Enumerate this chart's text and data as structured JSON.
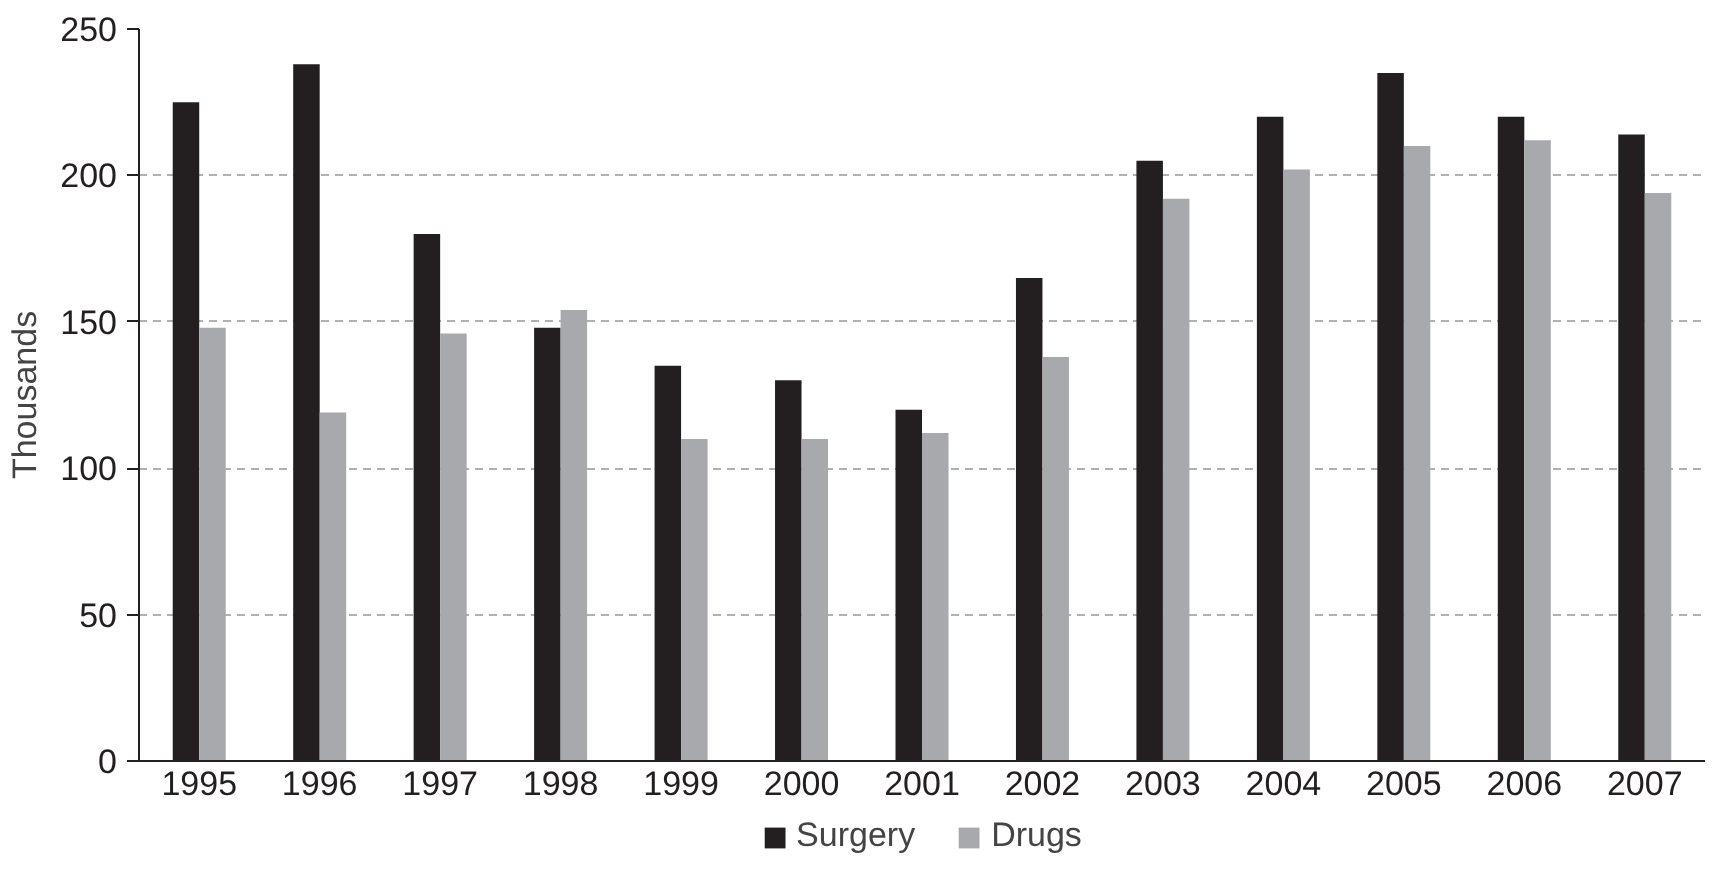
{
  "chart_data": {
    "type": "bar",
    "ylabel": "Thousands",
    "categories": [
      "1995",
      "1996",
      "1997",
      "1998",
      "1999",
      "2000",
      "2001",
      "2002",
      "2003",
      "2004",
      "2005",
      "2006",
      "2007"
    ],
    "series": [
      {
        "name": "Surgery",
        "color": "#231f20",
        "values": [
          225,
          238,
          180,
          148,
          135,
          130,
          120,
          165,
          205,
          220,
          235,
          220,
          214
        ]
      },
      {
        "name": "Drugs",
        "color": "#a7a9ac",
        "values": [
          148,
          119,
          146,
          154,
          110,
          110,
          112,
          138,
          192,
          202,
          210,
          212,
          194
        ]
      }
    ],
    "ylim": [
      0,
      250
    ],
    "yticks": [
      0,
      50,
      100,
      150,
      200,
      250
    ],
    "grid": "y",
    "legend": "bottom"
  }
}
